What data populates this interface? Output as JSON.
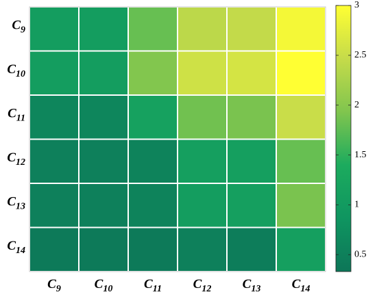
{
  "chart_data": {
    "type": "heatmap",
    "x_categories": [
      "C9",
      "C10",
      "C11",
      "C12",
      "C13",
      "C14"
    ],
    "y_categories": [
      "C9",
      "C10",
      "C11",
      "C12",
      "C13",
      "C14"
    ],
    "values": [
      [
        1.05,
        1.05,
        1.8,
        2.4,
        2.45,
        2.9
      ],
      [
        1.05,
        1.05,
        1.95,
        2.55,
        2.6,
        3.0
      ],
      [
        0.6,
        0.6,
        1.15,
        1.85,
        1.9,
        2.5
      ],
      [
        0.5,
        0.5,
        0.55,
        1.1,
        1.1,
        1.8
      ],
      [
        0.5,
        0.5,
        0.55,
        1.05,
        1.1,
        1.9
      ],
      [
        0.4,
        0.4,
        0.4,
        0.5,
        0.45,
        1.1
      ]
    ],
    "colormap": [
      "#0d7658",
      "#0f9560",
      "#1cab5e",
      "#80c54e",
      "#c5db4a",
      "#ffff33"
    ],
    "clim": [
      0.33,
      3
    ],
    "cticks": [
      0.5,
      1,
      1.5,
      2,
      2.5,
      3
    ]
  }
}
